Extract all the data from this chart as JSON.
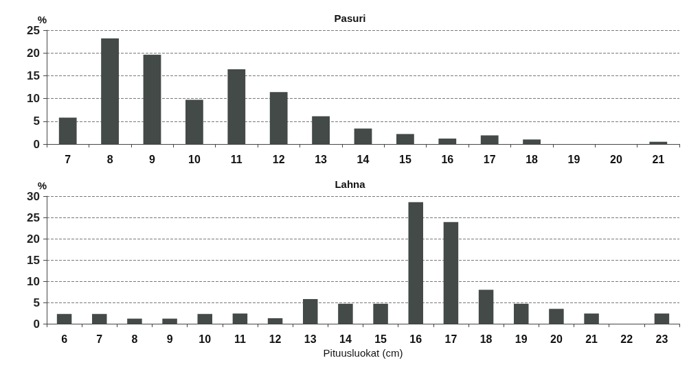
{
  "chart_data": [
    {
      "type": "bar",
      "title": "Pasuri",
      "ylabel": "%",
      "categories": [
        "7",
        "8",
        "9",
        "10",
        "11",
        "12",
        "13",
        "14",
        "15",
        "16",
        "17",
        "18",
        "19",
        "20",
        "21"
      ],
      "values": [
        5.8,
        23.2,
        19.6,
        9.7,
        16.4,
        11.4,
        6.1,
        3.4,
        2.2,
        1.2,
        1.9,
        1.0,
        0,
        0,
        0.5
      ],
      "color": "#434a47",
      "ylim": [
        0,
        25
      ],
      "yticks": [
        0,
        5,
        10,
        15,
        20,
        25
      ],
      "grid": "y"
    },
    {
      "type": "bar",
      "title": "Lahna",
      "ylabel": "%",
      "xlabel": "Pituusluokat (cm)",
      "categories": [
        "6",
        "7",
        "8",
        "9",
        "10",
        "11",
        "12",
        "13",
        "14",
        "15",
        "16",
        "17",
        "18",
        "19",
        "20",
        "21",
        "22",
        "23"
      ],
      "values": [
        2.3,
        2.3,
        1.2,
        1.2,
        2.3,
        2.4,
        1.3,
        5.8,
        4.7,
        4.7,
        28.6,
        23.9,
        8.0,
        4.7,
        3.5,
        2.4,
        0,
        2.4
      ],
      "color": "#434a47",
      "ylim": [
        0,
        30
      ],
      "yticks": [
        0,
        5,
        10,
        15,
        20,
        25,
        30
      ],
      "grid": "y"
    }
  ]
}
